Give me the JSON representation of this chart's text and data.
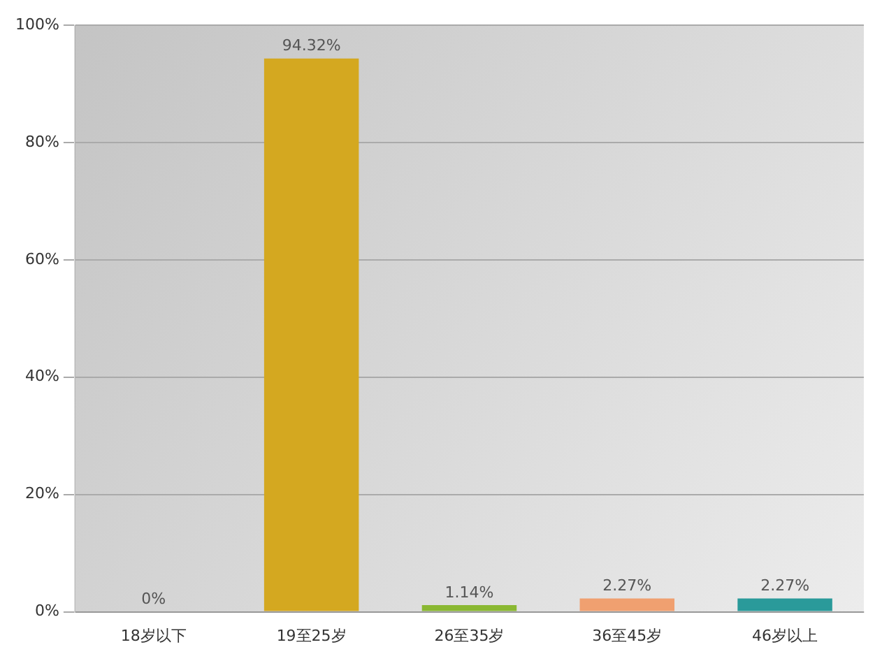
{
  "chart_data": {
    "type": "bar",
    "categories": [
      "18岁以下",
      "19至25岁",
      "26至35岁",
      "36至45岁",
      "46岁以上"
    ],
    "values": [
      0,
      94.32,
      1.14,
      2.27,
      2.27
    ],
    "colors": [
      "#a8cce8",
      "#d4a820",
      "#8ab832",
      "#f0a070",
      "#2a9a9a"
    ],
    "value_labels": [
      "0%",
      "94.32%",
      "1.14%",
      "2.27%",
      "2.27%"
    ],
    "ylim": [
      0,
      100
    ],
    "yticks": [
      {
        "value": 0,
        "label": "0%"
      },
      {
        "value": 20,
        "label": "20%"
      },
      {
        "value": 40,
        "label": "40%"
      },
      {
        "value": 60,
        "label": "60%"
      },
      {
        "value": 80,
        "label": "80%"
      },
      {
        "value": 100,
        "label": "100%"
      }
    ],
    "grid": "y",
    "legend": false
  }
}
